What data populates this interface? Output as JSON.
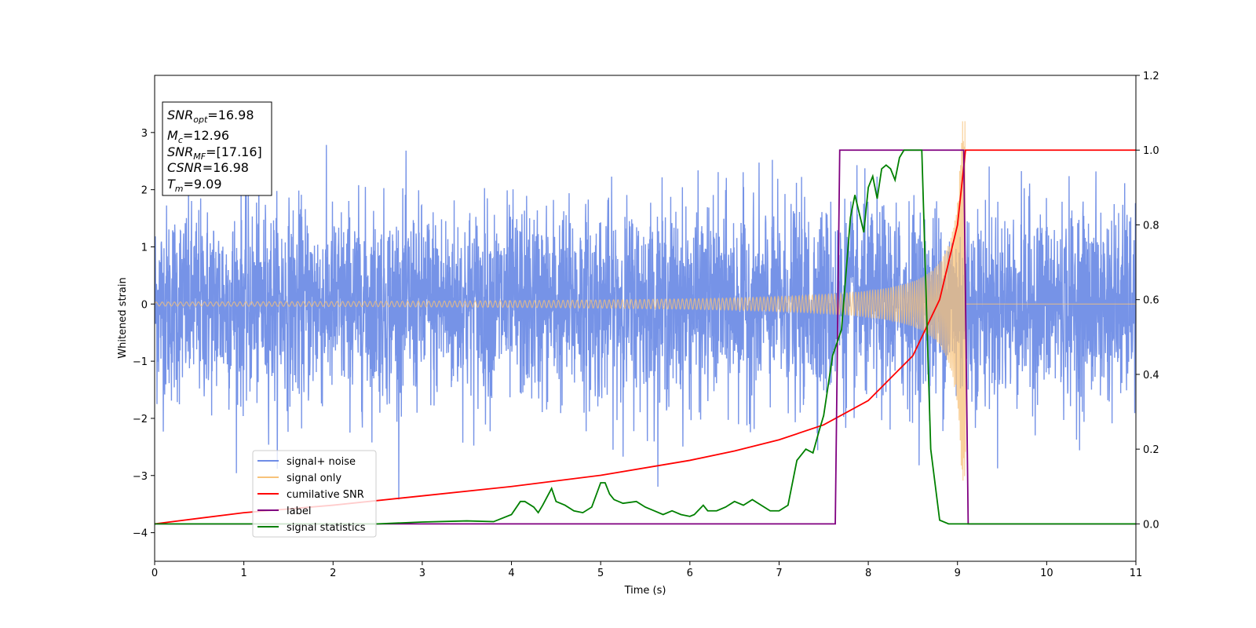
{
  "chart_data": {
    "type": "line",
    "xlabel": "Time (s)",
    "ylabel": "Whitened strain",
    "xlim": [
      0,
      11
    ],
    "ylim": [
      -4.5,
      4.0
    ],
    "y2lim": [
      -0.1,
      1.2
    ],
    "grid": false,
    "legend_position": "lower-left",
    "x_ticks": [
      "0",
      "1",
      "2",
      "3",
      "4",
      "5",
      "6",
      "7",
      "8",
      "9",
      "10",
      "11"
    ],
    "y_ticks": [
      "−4",
      "−3",
      "−2",
      "−1",
      "0",
      "1",
      "2",
      "3"
    ],
    "y_tick_values": [
      -4,
      -3,
      -2,
      -1,
      0,
      1,
      2,
      3
    ],
    "y2_ticks": [
      "0.0",
      "0.2",
      "0.4",
      "0.6",
      "0.8",
      "1.0",
      "1.2"
    ],
    "y2_tick_values": [
      0.0,
      0.2,
      0.4,
      0.6,
      0.8,
      1.0,
      1.2
    ],
    "info_box": {
      "snr_opt": {
        "main": "SNR",
        "sub": "opt",
        "value": "=16.98"
      },
      "mc": {
        "main": "M",
        "sub": "c",
        "value": "=12.96"
      },
      "snr_mf": {
        "main": "SNR",
        "sub": "MF",
        "value": "=[17.16]"
      },
      "csnr": {
        "main": "CSNR",
        "value": "=16.98"
      },
      "tm": {
        "main": "T",
        "sub": "m",
        "value": "=9.09"
      }
    },
    "series": [
      {
        "name": "signal+ noise",
        "color": "#6f8de6",
        "axis": "left",
        "kind": "noise",
        "std": 0.85,
        "range": [
          -3.5,
          3.6
        ]
      },
      {
        "name": "signal only",
        "color": "#f7c27a",
        "axis": "left",
        "kind": "chirp",
        "merger_time": 9.09
      },
      {
        "name": "cumilative SNR",
        "color": "#ff0000",
        "axis": "right",
        "x": [
          0,
          1,
          2,
          3,
          4,
          5,
          6,
          6.5,
          7,
          7.5,
          8,
          8.5,
          8.8,
          9.0,
          9.09,
          11
        ],
        "y": [
          0.0,
          0.03,
          0.05,
          0.075,
          0.1,
          0.13,
          0.17,
          0.195,
          0.225,
          0.265,
          0.33,
          0.45,
          0.6,
          0.8,
          1.0,
          1.0
        ]
      },
      {
        "name": "label",
        "color": "#800080",
        "axis": "right",
        "x": [
          0,
          7.63,
          7.68,
          9.07,
          9.12,
          11
        ],
        "y": [
          0.0,
          0.0,
          1.0,
          1.0,
          0.0,
          0.0
        ]
      },
      {
        "name": "signal statistics",
        "color": "#008000",
        "axis": "right",
        "x": [
          0,
          2.5,
          3.0,
          3.5,
          3.8,
          4.0,
          4.1,
          4.15,
          4.25,
          4.3,
          4.35,
          4.45,
          4.5,
          4.6,
          4.7,
          4.8,
          4.9,
          5.0,
          5.05,
          5.1,
          5.15,
          5.25,
          5.4,
          5.5,
          5.6,
          5.7,
          5.8,
          5.9,
          6.0,
          6.05,
          6.15,
          6.2,
          6.3,
          6.4,
          6.5,
          6.6,
          6.7,
          6.8,
          6.9,
          7.0,
          7.1,
          7.2,
          7.3,
          7.38,
          7.45,
          7.5,
          7.6,
          7.7,
          7.8,
          7.85,
          7.9,
          7.95,
          8.0,
          8.05,
          8.1,
          8.15,
          8.2,
          8.25,
          8.3,
          8.35,
          8.4,
          8.45,
          8.5,
          8.55,
          8.6,
          8.7,
          8.8,
          8.9,
          9.0,
          9.05,
          9.1,
          9.15,
          9.2,
          11
        ],
        "y": [
          0.0,
          0.0,
          0.005,
          0.008,
          0.006,
          0.025,
          0.06,
          0.06,
          0.045,
          0.03,
          0.05,
          0.095,
          0.06,
          0.05,
          0.035,
          0.03,
          0.045,
          0.11,
          0.11,
          0.08,
          0.065,
          0.055,
          0.06,
          0.045,
          0.035,
          0.025,
          0.035,
          0.025,
          0.02,
          0.025,
          0.05,
          0.035,
          0.035,
          0.045,
          0.06,
          0.05,
          0.065,
          0.05,
          0.035,
          0.035,
          0.05,
          0.17,
          0.2,
          0.19,
          0.25,
          0.29,
          0.45,
          0.52,
          0.82,
          0.88,
          0.83,
          0.78,
          0.9,
          0.93,
          0.87,
          0.95,
          0.96,
          0.95,
          0.92,
          0.98,
          1.0,
          1.0,
          1.0,
          1.0,
          1.0,
          0.2,
          0.01,
          0.0,
          0.0,
          0.0,
          0.0,
          0.0,
          0.0,
          0.0
        ]
      }
    ]
  }
}
